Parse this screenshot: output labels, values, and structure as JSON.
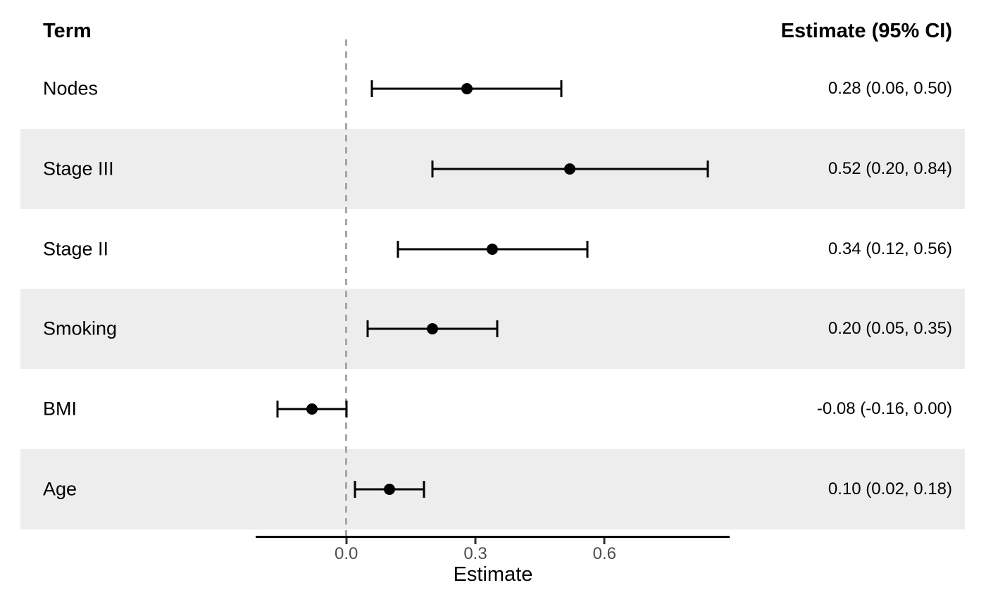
{
  "header": {
    "term_label": "Term",
    "estimate_label": "Estimate (95% CI)"
  },
  "chart_data": {
    "type": "forest",
    "title": "",
    "xlabel": "Estimate",
    "x_ticks": [
      0.0,
      0.3,
      0.6
    ],
    "x_tick_labels": [
      "0.0",
      "0.3",
      "0.6"
    ],
    "axis_range": [
      -0.21,
      0.89
    ],
    "reference_line": 0.0,
    "grid": false,
    "rows": [
      {
        "term": "Nodes",
        "estimate": 0.28,
        "ci_low": 0.06,
        "ci_high": 0.5,
        "label": "0.28 (0.06, 0.50)",
        "shaded": false
      },
      {
        "term": "Stage III",
        "estimate": 0.52,
        "ci_low": 0.2,
        "ci_high": 0.84,
        "label": "0.52 (0.20, 0.84)",
        "shaded": true
      },
      {
        "term": "Stage II",
        "estimate": 0.34,
        "ci_low": 0.12,
        "ci_high": 0.56,
        "label": "0.34 (0.12, 0.56)",
        "shaded": false
      },
      {
        "term": "Smoking",
        "estimate": 0.2,
        "ci_low": 0.05,
        "ci_high": 0.35,
        "label": "0.20 (0.05, 0.35)",
        "shaded": true
      },
      {
        "term": "BMI",
        "estimate": -0.08,
        "ci_low": -0.16,
        "ci_high": 0.0,
        "label": "-0.08 (-0.16, 0.00)",
        "shaded": false
      },
      {
        "term": "Age",
        "estimate": 0.1,
        "ci_low": 0.02,
        "ci_high": 0.18,
        "label": "0.10 (0.02, 0.18)",
        "shaded": true
      }
    ],
    "colors": {
      "band": "#EDEDED",
      "reference_line": "#A6A6A6",
      "marker": "#000000",
      "axis_text": "#4D4D4D",
      "axis_line": "#000000"
    }
  }
}
